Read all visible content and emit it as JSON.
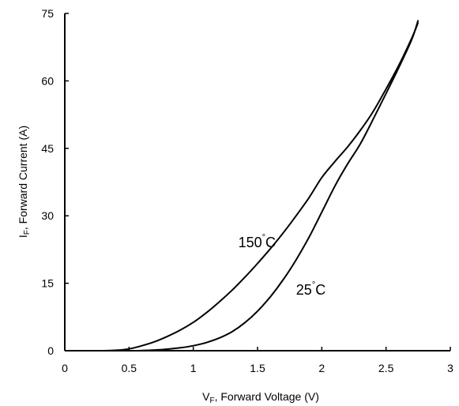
{
  "chart_data": {
    "type": "line",
    "title": "",
    "xlabel_main": "V",
    "xlabel_sub": "F",
    "xlabel_rest": ", Forward Voltage (V)",
    "ylabel_main": "I",
    "ylabel_sub": "F",
    "ylabel_rest": ", Forward Current (A)",
    "xlim": [
      0,
      3
    ],
    "ylim": [
      0,
      75
    ],
    "x_ticks": [
      0,
      0.5,
      1,
      1.5,
      2,
      2.5,
      3
    ],
    "x_tick_labels": [
      "0",
      "0.5",
      "1",
      "1.5",
      "2",
      "2.5",
      "3"
    ],
    "y_ticks": [
      0,
      15,
      30,
      45,
      60,
      75
    ],
    "y_tick_labels": [
      "0",
      "15",
      "30",
      "45",
      "60",
      "75"
    ],
    "grid": false,
    "series": [
      {
        "name": "150°C",
        "label_text": "150",
        "label_unit": "C",
        "label_at": [
          1.35,
          23
        ],
        "points": [
          [
            0,
            0
          ],
          [
            0.3,
            0
          ],
          [
            0.4,
            0.1
          ],
          [
            0.5,
            0.4
          ],
          [
            0.6,
            1.1
          ],
          [
            0.7,
            2.0
          ],
          [
            0.8,
            3.2
          ],
          [
            0.9,
            4.6
          ],
          [
            1.0,
            6.3
          ],
          [
            1.1,
            8.4
          ],
          [
            1.2,
            10.8
          ],
          [
            1.3,
            13.4
          ],
          [
            1.4,
            16.3
          ],
          [
            1.5,
            19.4
          ],
          [
            1.6,
            22.7
          ],
          [
            1.7,
            26.2
          ],
          [
            1.8,
            30.0
          ],
          [
            1.9,
            34.0
          ],
          [
            2.0,
            38.5
          ],
          [
            2.1,
            42.0
          ],
          [
            2.2,
            45.3
          ],
          [
            2.3,
            49.0
          ],
          [
            2.4,
            53.2
          ],
          [
            2.5,
            58.2
          ],
          [
            2.6,
            63.5
          ],
          [
            2.7,
            69.5
          ],
          [
            2.75,
            73
          ]
        ]
      },
      {
        "name": "25°C",
        "label_text": "25",
        "label_unit": "C",
        "label_at": [
          1.8,
          12.5
        ],
        "points": [
          [
            0,
            0
          ],
          [
            0.5,
            0
          ],
          [
            0.6,
            0.05
          ],
          [
            0.7,
            0.15
          ],
          [
            0.8,
            0.35
          ],
          [
            0.9,
            0.65
          ],
          [
            1.0,
            1.1
          ],
          [
            1.1,
            1.8
          ],
          [
            1.2,
            2.8
          ],
          [
            1.3,
            4.2
          ],
          [
            1.4,
            6.2
          ],
          [
            1.5,
            8.8
          ],
          [
            1.6,
            12.0
          ],
          [
            1.7,
            15.8
          ],
          [
            1.8,
            20.2
          ],
          [
            1.9,
            25.2
          ],
          [
            2.0,
            30.8
          ],
          [
            2.1,
            36.5
          ],
          [
            2.2,
            41.5
          ],
          [
            2.3,
            46.0
          ],
          [
            2.4,
            51.5
          ],
          [
            2.5,
            57.2
          ],
          [
            2.6,
            63.0
          ],
          [
            2.7,
            69.2
          ],
          [
            2.75,
            73.5
          ]
        ]
      }
    ]
  }
}
